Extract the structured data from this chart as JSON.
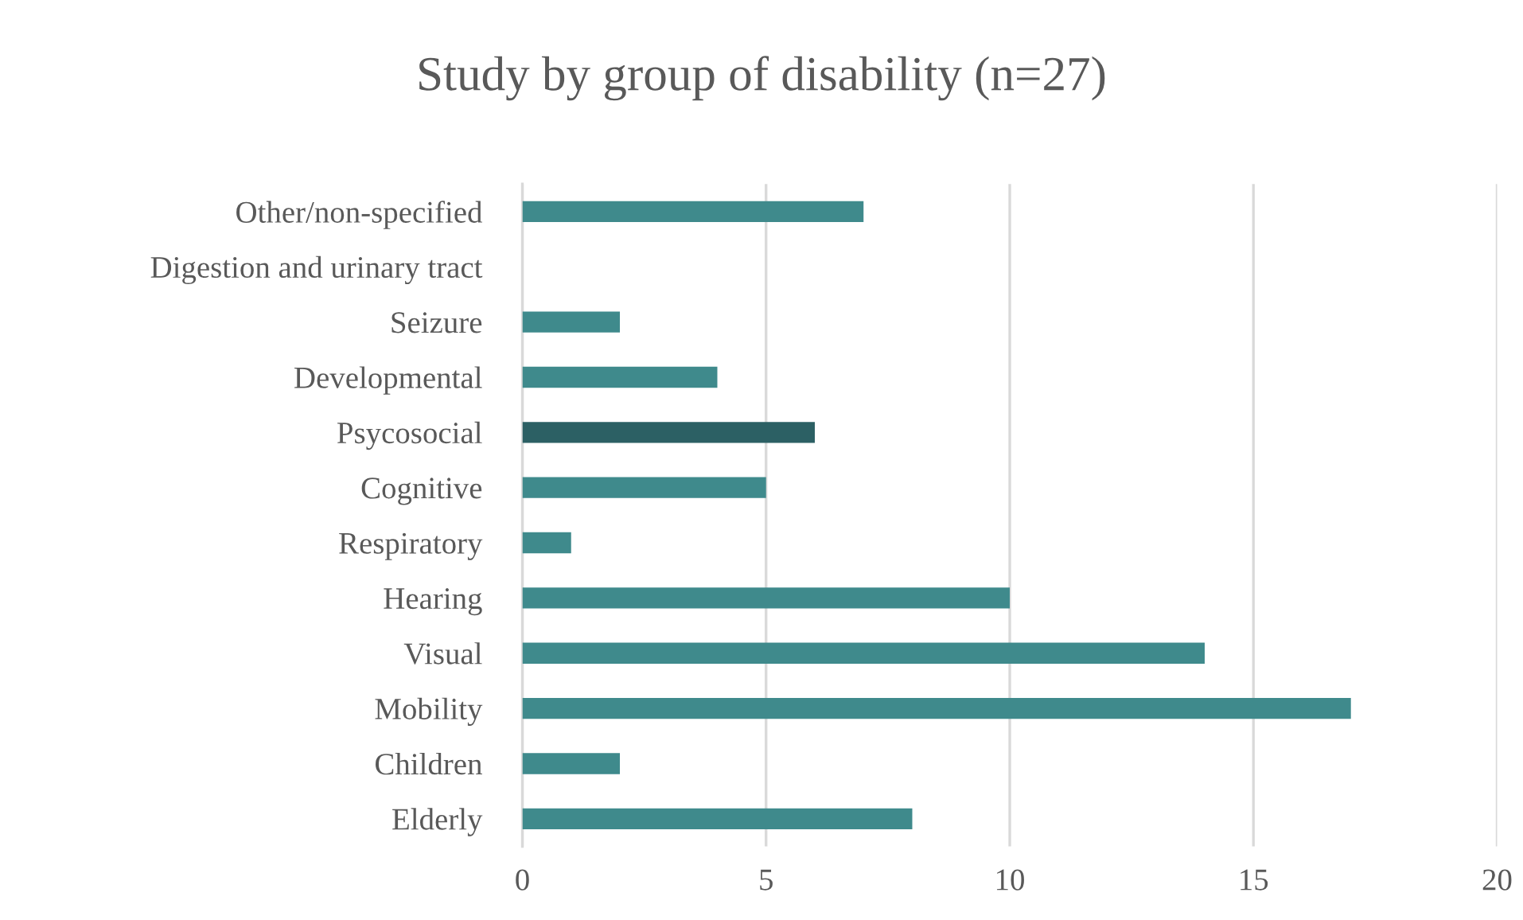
{
  "chart_data": {
    "type": "bar",
    "orientation": "horizontal",
    "title": "Study by group of disability (n=27)",
    "categories": [
      "Other/non-specified",
      "Digestion and urinary tract",
      "Seizure",
      "Developmental",
      "Psycosocial",
      "Cognitive",
      "Respiratory",
      "Hearing",
      "Visual",
      "Mobility",
      "Children",
      "Elderly"
    ],
    "values": [
      7,
      0,
      2,
      4,
      6,
      5,
      1,
      10,
      14,
      17,
      2,
      8
    ],
    "colors": [
      "#3f8a8c",
      "#3f8a8c",
      "#3f8a8c",
      "#3f8a8c",
      "#2c6064",
      "#3f8a8c",
      "#3f8a8c",
      "#3f8a8c",
      "#3f8a8c",
      "#3f8a8c",
      "#3f8a8c",
      "#3f8a8c"
    ],
    "xlim": [
      0,
      20
    ],
    "xticks": [
      0,
      5,
      10,
      15,
      20
    ],
    "grid": "x",
    "legend": false
  }
}
